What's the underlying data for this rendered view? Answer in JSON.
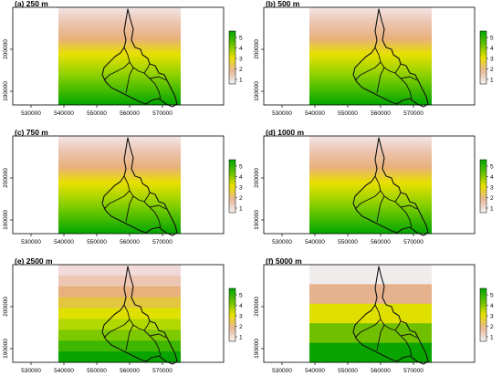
{
  "figure": {
    "panels": [
      {
        "label": "(a) 250 m",
        "res_m": 250
      },
      {
        "label": "(b) 500 m",
        "res_m": 500
      },
      {
        "label": "(c) 750 m",
        "res_m": 750
      },
      {
        "label": "(d) 1000 m",
        "res_m": 1000
      },
      {
        "label": "(e) 2500 m",
        "res_m": 2500
      },
      {
        "label": "(f) 5000 m",
        "res_m": 5000
      }
    ],
    "x_ticks": [
      "530000",
      "540000",
      "550000",
      "560000",
      "570000"
    ],
    "y_ticks": [
      "190000",
      "200000"
    ],
    "legend": {
      "ticks": [
        "1",
        "2",
        "3",
        "4",
        "5"
      ],
      "colors": [
        "#f2f2f2",
        "#e8b898",
        "#e8e000",
        "#66c000",
        "#00a600"
      ]
    },
    "band_colors_5000": [
      "#f0ecec",
      "#e6b28e",
      "#e0e000",
      "#70c000",
      "#0aa400"
    ]
  }
}
